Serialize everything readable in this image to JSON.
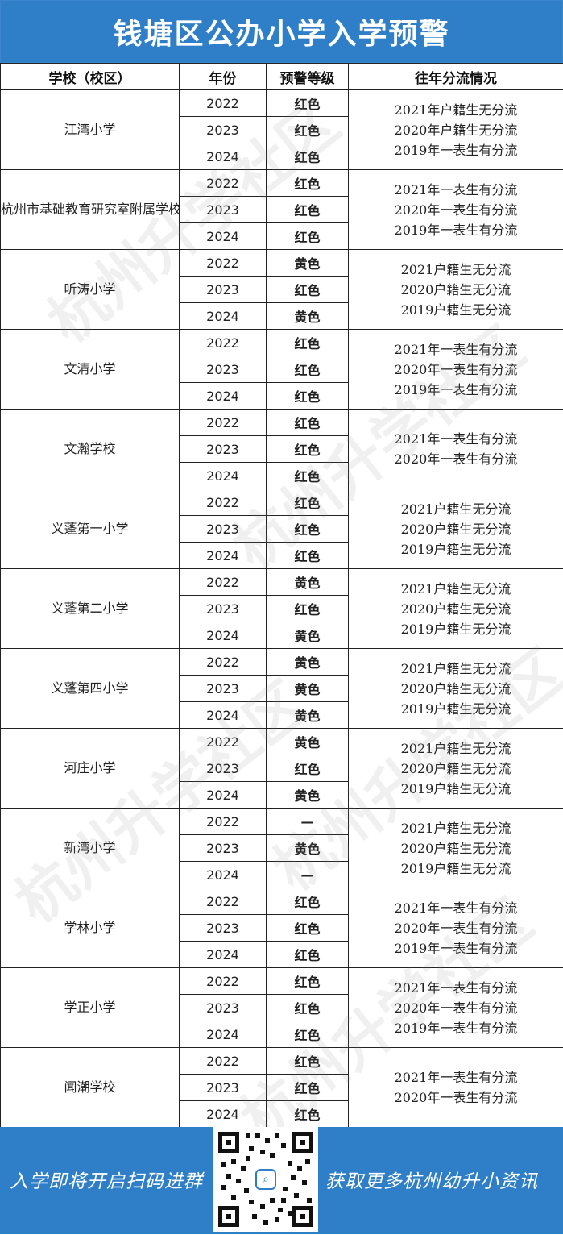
{
  "title": "钱塘区公办小学入学预警",
  "headers": {
    "school": "学校（校区）",
    "year": "年份",
    "level": "预警等级",
    "history": "往年分流情况"
  },
  "level_colors": {
    "red": "#d8141a",
    "yellow": "#e2b100"
  },
  "schools": [
    {
      "name": "江湾小学",
      "rows": [
        {
          "year": "2022",
          "level": "红色",
          "color": "red"
        },
        {
          "year": "2023",
          "level": "红色",
          "color": "red"
        },
        {
          "year": "2024",
          "level": "红色",
          "color": "red"
        }
      ],
      "history": [
        "2021年户籍生无分流",
        "2020年户籍生无分流",
        "2019年一表生有分流"
      ]
    },
    {
      "name": "杭州市基础教育研究室附属学校",
      "rows": [
        {
          "year": "2022",
          "level": "红色",
          "color": "red"
        },
        {
          "year": "2023",
          "level": "红色",
          "color": "red"
        },
        {
          "year": "2024",
          "level": "红色",
          "color": "red"
        }
      ],
      "history": [
        "2021年一表生有分流",
        "2020年一表生有分流",
        "2019年一表生有分流"
      ]
    },
    {
      "name": "听涛小学",
      "rows": [
        {
          "year": "2022",
          "level": "黄色",
          "color": "yellow"
        },
        {
          "year": "2023",
          "level": "红色",
          "color": "red"
        },
        {
          "year": "2024",
          "level": "黄色",
          "color": "yellow"
        }
      ],
      "history": [
        "2021户籍生无分流",
        "2020户籍生无分流",
        "2019户籍生无分流"
      ]
    },
    {
      "name": "文清小学",
      "rows": [
        {
          "year": "2022",
          "level": "红色",
          "color": "red"
        },
        {
          "year": "2023",
          "level": "红色",
          "color": "red"
        },
        {
          "year": "2024",
          "level": "红色",
          "color": "red"
        }
      ],
      "history": [
        "2021年一表生有分流",
        "2020年一表生有分流",
        "2019年一表生有分流"
      ]
    },
    {
      "name": "文瀚学校",
      "rows": [
        {
          "year": "2022",
          "level": "红色",
          "color": "red"
        },
        {
          "year": "2023",
          "level": "红色",
          "color": "red"
        },
        {
          "year": "2024",
          "level": "红色",
          "color": "red"
        }
      ],
      "history": [
        "2021年一表生有分流",
        "2020年一表生有分流"
      ]
    },
    {
      "name": "义蓬第一小学",
      "rows": [
        {
          "year": "2022",
          "level": "红色",
          "color": "red"
        },
        {
          "year": "2023",
          "level": "红色",
          "color": "red"
        },
        {
          "year": "2024",
          "level": "红色",
          "color": "red"
        }
      ],
      "history": [
        "2021户籍生无分流",
        "2020户籍生无分流",
        "2019户籍生无分流"
      ]
    },
    {
      "name": "义蓬第二小学",
      "rows": [
        {
          "year": "2022",
          "level": "黄色",
          "color": "yellow"
        },
        {
          "year": "2023",
          "level": "红色",
          "color": "red"
        },
        {
          "year": "2024",
          "level": "黄色",
          "color": "yellow"
        }
      ],
      "history": [
        "2021户籍生无分流",
        "2020户籍生无分流",
        "2019户籍生无分流"
      ]
    },
    {
      "name": "义蓬第四小学",
      "rows": [
        {
          "year": "2022",
          "level": "黄色",
          "color": "yellow"
        },
        {
          "year": "2023",
          "level": "黄色",
          "color": "yellow"
        },
        {
          "year": "2024",
          "level": "黄色",
          "color": "yellow"
        }
      ],
      "history": [
        "2021户籍生无分流",
        "2020户籍生无分流",
        "2019户籍生无分流"
      ]
    },
    {
      "name": "河庄小学",
      "rows": [
        {
          "year": "2022",
          "level": "黄色",
          "color": "yellow"
        },
        {
          "year": "2023",
          "level": "红色",
          "color": "red"
        },
        {
          "year": "2024",
          "level": "黄色",
          "color": "yellow"
        }
      ],
      "history": [
        "2021户籍生无分流",
        "2020户籍生无分流",
        "2019户籍生无分流"
      ]
    },
    {
      "name": "新湾小学",
      "rows": [
        {
          "year": "2022",
          "level": "—",
          "color": "none"
        },
        {
          "year": "2023",
          "level": "黄色",
          "color": "yellow"
        },
        {
          "year": "2024",
          "level": "—",
          "color": "none"
        }
      ],
      "history": [
        "2021户籍生无分流",
        "2020户籍生无分流",
        "2019户籍生无分流"
      ]
    },
    {
      "name": "学林小学",
      "rows": [
        {
          "year": "2022",
          "level": "红色",
          "color": "red"
        },
        {
          "year": "2023",
          "level": "红色",
          "color": "red"
        },
        {
          "year": "2024",
          "level": "红色",
          "color": "red"
        }
      ],
      "history": [
        "2021年一表生有分流",
        "2020年一表生有分流",
        "2019年一表生有分流"
      ]
    },
    {
      "name": "学正小学",
      "rows": [
        {
          "year": "2022",
          "level": "红色",
          "color": "red"
        },
        {
          "year": "2023",
          "level": "红色",
          "color": "red"
        },
        {
          "year": "2024",
          "level": "红色",
          "color": "red"
        }
      ],
      "history": [
        "2021年一表生有分流",
        "2020年一表生有分流",
        "2019年一表生有分流"
      ]
    },
    {
      "name": "闻潮学校",
      "rows": [
        {
          "year": "2022",
          "level": "红色",
          "color": "red"
        },
        {
          "year": "2023",
          "level": "红色",
          "color": "red"
        },
        {
          "year": "2024",
          "level": "红色",
          "color": "red"
        }
      ],
      "history": [
        "2021年一表生有分流",
        "2020年一表生有分流"
      ]
    }
  ],
  "watermark": "杭州升学社区",
  "footer": {
    "left_text": "入学即将开启扫码进群",
    "right_text": "获取更多杭州幼升小资讯",
    "qr_icon": "qr-code-icon"
  }
}
